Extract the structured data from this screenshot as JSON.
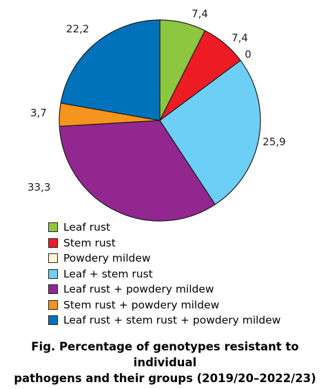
{
  "chart_data": {
    "type": "pie",
    "unit": "%",
    "categories": [
      "Leaf rust",
      "Stem rust",
      "Powdery mildew",
      "Leaf + stem rust",
      "Leaf rust + powdery mildew",
      "Stem rust + powdery mildew",
      "Leaf rust + stem rust + powdery mildew"
    ],
    "values": [
      7.4,
      7.4,
      0,
      25.9,
      33.3,
      3.7,
      22.2
    ],
    "value_labels": [
      "7,4",
      "7,4",
      "0",
      "25,9",
      "33,3",
      "3,7",
      "22,2"
    ],
    "colors": [
      "#8DC63F",
      "#ED1C24",
      "#FFF5D6",
      "#6DCFF6",
      "#92278F",
      "#F7941D",
      "#0072BC"
    ],
    "legend_position": "bottom-left",
    "start_angle_deg": 0,
    "direction": "clockwise"
  },
  "caption": {
    "line1": "Fig. Percentage of genotypes resistant to individual",
    "line2": "pathogens and their groups (2019/20–2022/23)"
  }
}
